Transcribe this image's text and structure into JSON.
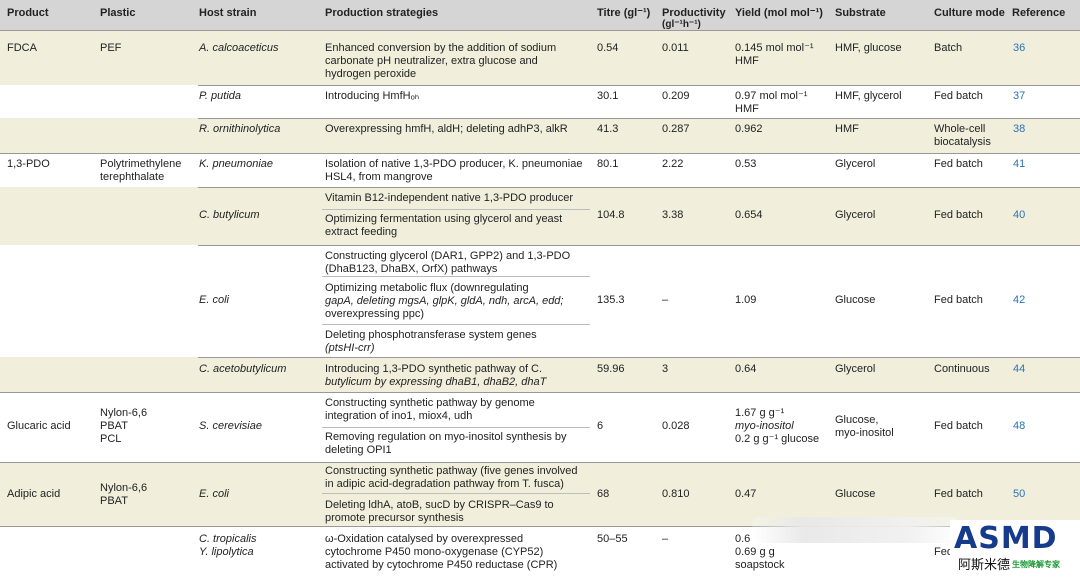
{
  "table": {
    "headers": {
      "product": "Product",
      "plastic": "Plastic",
      "host": "Host strain",
      "strategies": "Production strategies",
      "titre": "Titre (gl⁻¹)",
      "productivity_1": "Productivity",
      "productivity_2": "(gl⁻¹h⁻¹)",
      "yield": "Yield (mol mol⁻¹)",
      "substrate": "Substrate",
      "culture": "Culture mode",
      "reference": "Reference"
    },
    "fdca": {
      "product": "FDCA",
      "plastic": "PEF",
      "host_1": "A. calcoaceticus",
      "strat_1": [
        "Enhanced conversion by the addition of sodium",
        "carbonate pH neutralizer, extra glucose and",
        "hydrogen peroxide"
      ],
      "titre_1": "0.54",
      "prod_1": "0.011",
      "yield_1": [
        "0.145 mol mol⁻¹",
        "HMF"
      ],
      "sub_1": "HMF, glucose",
      "mode_1": "Batch",
      "ref_1": "36",
      "host_2": "P. putida",
      "strat_2": "Introducing HmfHₒₕ",
      "titre_2": "30.1",
      "prod_2": "0.209",
      "yield_2": [
        "0.97 mol mol⁻¹",
        "HMF"
      ],
      "sub_2": "HMF, glycerol",
      "mode_2": "Fed batch",
      "ref_2": "37",
      "host_3": "R. ornithinolytica",
      "strat_3": "Overexpressing hmfH, aldH; deleting adhP3, alkR",
      "titre_3": "41.3",
      "prod_3": "0.287",
      "yield_3": "0.962",
      "sub_3": "HMF",
      "mode_3": [
        "Whole-cell",
        "biocatalysis"
      ],
      "ref_3": "38"
    },
    "pdo": {
      "product": "1,3-PDO",
      "plastic": [
        "Polytrimethylene",
        "terephthalate"
      ],
      "host_1": "K. pneumoniae",
      "strat_1": [
        "Isolation of native 1,3-PDO producer, K. pneumoniae",
        "HSL4, from mangrove"
      ],
      "titre_1": "80.1",
      "prod_1": "2.22",
      "yield_1": "0.53",
      "sub_1": "Glycerol",
      "mode_1": "Fed batch",
      "ref_1": "41",
      "host_2": "C. butylicum",
      "strat_2a": "Vitamin B12-independent native 1,3-PDO producer",
      "strat_2b": [
        "Optimizing fermentation using glycerol and yeast",
        "extract feeding"
      ],
      "titre_2": "104.8",
      "prod_2": "3.38",
      "yield_2": "0.654",
      "sub_2": "Glycerol",
      "mode_2": "Fed batch",
      "ref_2": "40",
      "host_3": "E. coli",
      "strat_3a": [
        "Constructing glycerol (DAR1, GPP2) and 1,3-PDO",
        "(DhaB123, DhaBX, OrfX) pathways"
      ],
      "strat_3b": [
        "Optimizing metabolic flux (downregulating",
        "gapA, deleting mgsA, glpK, gldA, ndh, arcA, edd;",
        "overexpressing ppc)"
      ],
      "strat_3c": [
        "Deleting phosphotransferase system genes",
        "(ptsHI-crr)"
      ],
      "titre_3": "135.3",
      "prod_3": "–",
      "yield_3": "1.09",
      "sub_3": "Glucose",
      "mode_3": "Fed batch",
      "ref_3": "42",
      "host_4": "C. acetobutylicum",
      "strat_4": [
        "Introducing 1,3-PDO synthetic pathway of C.",
        "butylicum by expressing dhaB1, dhaB2, dhaT"
      ],
      "titre_4": "59.96",
      "prod_4": "3",
      "yield_4": "0.64",
      "sub_4": "Glycerol",
      "mode_4": "Continuous",
      "ref_4": "44"
    },
    "glucaric": {
      "product": "Glucaric acid",
      "plastic": [
        "Nylon-6,6",
        "PBAT",
        "PCL"
      ],
      "host": "S. cerevisiae",
      "strat_a": [
        "Constructing synthetic pathway by genome",
        "integration of ino1, miox4, udh"
      ],
      "strat_b": [
        "Removing regulation on myo-inositol synthesis by",
        "deleting OPI1"
      ],
      "titre": "6",
      "prod": "0.028",
      "yield": [
        "1.67 g g⁻¹",
        "myo-inositol",
        "0.2 g g⁻¹ glucose"
      ],
      "sub": [
        "Glucose,",
        "myo-inositol"
      ],
      "mode": "Fed batch",
      "ref": "48"
    },
    "adipic": {
      "product": "Adipic acid",
      "plastic": [
        "Nylon-6,6",
        "PBAT"
      ],
      "host": "E. coli",
      "strat_a": [
        "Constructing synthetic pathway (five genes involved",
        "in adipic acid-degradation pathway from T. fusca)"
      ],
      "strat_b": [
        "Deleting ldhA, atoB, sucD by CRISPR–Cas9 to",
        "promote precursor synthesis"
      ],
      "titre": "68",
      "prod": "0.810",
      "yield": "0.47",
      "sub": "Glucose",
      "mode": "Fed batch",
      "ref": "50"
    },
    "last": {
      "host": [
        "C. tropicalis",
        "Y. lipolytica"
      ],
      "strat": [
        "ω-Oxidation catalysed by overexpressed",
        "cytochrome P450 mono-oxygenase (CYP52)",
        "activated by cytochrome P450 reductase (CPR)"
      ],
      "titre": "50–55",
      "prod": "–",
      "yield": [
        "0.6",
        "0.69 g g",
        "soapstock"
      ],
      "mode": "Fed"
    }
  },
  "watermark": {
    "brand": "ASMD",
    "cn_name": "阿斯米德",
    "cn_tag": "生物降解专家",
    "brand_color": "#163a8c",
    "tag_color": "#1f9a3a"
  },
  "colors": {
    "header_bg": "#d5d5d5",
    "band_bg": "#f1efdc",
    "reference_link": "#2a72b8"
  }
}
